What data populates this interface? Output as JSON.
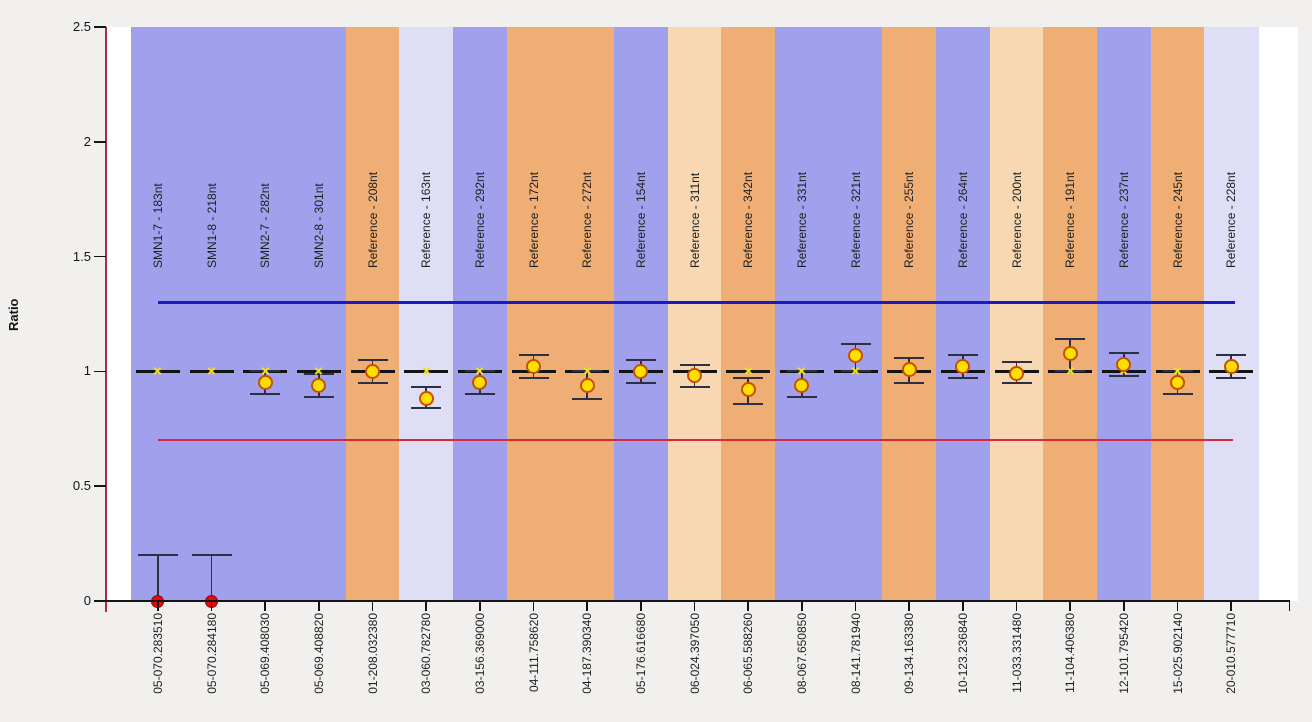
{
  "chart_data": {
    "type": "scatter",
    "title": "",
    "ylabel": "Ratio",
    "ylim": [
      0,
      2.5
    ],
    "ytick_values": [
      0,
      0.5,
      1,
      1.5,
      2,
      2.5
    ],
    "ytick_labels": [
      "0",
      "0.5",
      "1",
      "1.5",
      "2",
      "2.5"
    ],
    "grid": false,
    "legend": "none",
    "normal_line": 1.0,
    "upper_threshold": 1.3,
    "lower_threshold": 0.7,
    "columns": [
      {
        "sample": "05-070.283510",
        "probe": "SMN1-7 - 183nt",
        "band": "blue",
        "ratio": 0.0,
        "hi": 0.2,
        "lo": 0.0,
        "marker": "deleted"
      },
      {
        "sample": "05-070.284180",
        "probe": "SMN1-8 - 218nt",
        "band": "blue",
        "ratio": 0.0,
        "hi": 0.2,
        "lo": 0.0,
        "marker": "deleted"
      },
      {
        "sample": "05-069.408030",
        "probe": "SMN2-7 - 282nt",
        "band": "blue",
        "ratio": 0.95,
        "hi": 1.0,
        "lo": 0.9,
        "marker": "normal"
      },
      {
        "sample": "05-069.408820",
        "probe": "SMN2-8 - 301nt",
        "band": "blue",
        "ratio": 0.94,
        "hi": 0.99,
        "lo": 0.89,
        "marker": "normal"
      },
      {
        "sample": "01-208.032380",
        "probe": "Reference - 208nt",
        "band": "orange",
        "ratio": 1.0,
        "hi": 1.05,
        "lo": 0.95,
        "marker": "normal"
      },
      {
        "sample": "03-060.782780",
        "probe": "Reference - 163nt",
        "band": "lavender",
        "ratio": 0.88,
        "hi": 0.93,
        "lo": 0.84,
        "marker": "normal"
      },
      {
        "sample": "03-156.369000",
        "probe": "Reference - 292nt",
        "band": "blue",
        "ratio": 0.95,
        "hi": 1.0,
        "lo": 0.9,
        "marker": "normal"
      },
      {
        "sample": "04-111.758620",
        "probe": "Reference - 172nt",
        "band": "orange",
        "ratio": 1.02,
        "hi": 1.07,
        "lo": 0.97,
        "marker": "normal"
      },
      {
        "sample": "04-187.390340",
        "probe": "Reference - 272nt",
        "band": "orange",
        "ratio": 0.94,
        "hi": 1.0,
        "lo": 0.88,
        "marker": "normal"
      },
      {
        "sample": "05-176.616680",
        "probe": "Reference - 154nt",
        "band": "blue",
        "ratio": 1.0,
        "hi": 1.05,
        "lo": 0.95,
        "marker": "normal"
      },
      {
        "sample": "06-024.397050",
        "probe": "Reference - 311nt",
        "band": "peach",
        "ratio": 0.98,
        "hi": 1.03,
        "lo": 0.93,
        "marker": "normal"
      },
      {
        "sample": "06-065.588260",
        "probe": "Reference - 342nt",
        "band": "orange",
        "ratio": 0.92,
        "hi": 0.97,
        "lo": 0.86,
        "marker": "normal"
      },
      {
        "sample": "08-067.650850",
        "probe": "Reference - 331nt",
        "band": "blue",
        "ratio": 0.94,
        "hi": 1.0,
        "lo": 0.89,
        "marker": "normal"
      },
      {
        "sample": "08-141.781940",
        "probe": "Reference - 321nt",
        "band": "blue",
        "ratio": 1.07,
        "hi": 1.12,
        "lo": 1.0,
        "marker": "normal"
      },
      {
        "sample": "09-134.163380",
        "probe": "Reference - 255nt",
        "band": "orange",
        "ratio": 1.01,
        "hi": 1.06,
        "lo": 0.95,
        "marker": "normal"
      },
      {
        "sample": "10-123.236840",
        "probe": "Reference - 264nt",
        "band": "blue",
        "ratio": 1.02,
        "hi": 1.07,
        "lo": 0.97,
        "marker": "normal"
      },
      {
        "sample": "11-033.331480",
        "probe": "Reference - 200nt",
        "band": "peach",
        "ratio": 0.99,
        "hi": 1.04,
        "lo": 0.95,
        "marker": "normal"
      },
      {
        "sample": "11-104.406380",
        "probe": "Reference - 191nt",
        "band": "orange",
        "ratio": 1.08,
        "hi": 1.14,
        "lo": 1.0,
        "marker": "normal"
      },
      {
        "sample": "12-101.795420",
        "probe": "Reference - 237nt",
        "band": "blue",
        "ratio": 1.03,
        "hi": 1.08,
        "lo": 0.98,
        "marker": "normal"
      },
      {
        "sample": "15-025.902140",
        "probe": "Reference - 245nt",
        "band": "orange",
        "ratio": 0.95,
        "hi": 1.0,
        "lo": 0.9,
        "marker": "normal"
      },
      {
        "sample": "20-010.577710",
        "probe": "Reference - 228nt",
        "band": "lavender",
        "ratio": 1.02,
        "hi": 1.07,
        "lo": 0.97,
        "marker": "normal"
      }
    ]
  },
  "colors": {
    "band_blue": "#a0a0ec",
    "band_orange": "#efae73",
    "band_lavender": "#dedef6",
    "band_peach": "#f8d8b2",
    "upper_line": "#1a1ac0",
    "lower_line": "#d82840",
    "y_axis": "#a82e3e",
    "normal_dash": "#141414",
    "error_bar": "#2e2e44",
    "marker_fill": "#ffdf00",
    "marker_stroke": "#c85000",
    "deleted_fill": "#e00d0d",
    "deleted_stroke": "#a00000",
    "x_mark": "#f2e020"
  }
}
